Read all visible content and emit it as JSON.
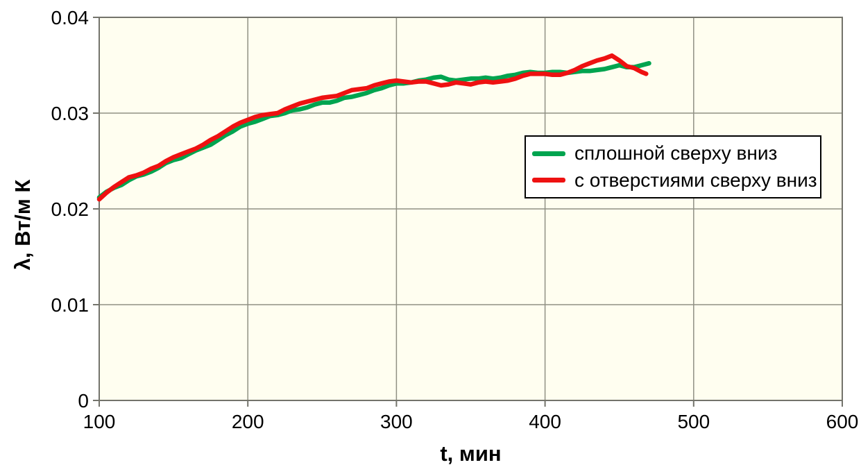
{
  "page": {
    "outer_background": "#ffffff"
  },
  "chart_data": {
    "type": "line",
    "title": "",
    "xlabel": "t, мин",
    "ylabel": "λ, Вт/м К",
    "xlim": [
      100,
      600
    ],
    "ylim": [
      0,
      0.04
    ],
    "x_ticks": [
      100,
      200,
      300,
      400,
      500,
      600
    ],
    "x_tick_labels": [
      "100",
      "200",
      "300",
      "400",
      "500",
      "600"
    ],
    "y_ticks": [
      0,
      0.01,
      0.02,
      0.03,
      0.04
    ],
    "y_tick_labels": [
      "0",
      "0.01",
      "0.02",
      "0.03",
      "0.04"
    ],
    "grid": true,
    "plot_background": "#fffef0",
    "grid_color": "#909084",
    "axis_color": "#73736b",
    "text_color": "#000000",
    "legend_position": "inside upper right",
    "series": [
      {
        "name": "сплошной сверху вниз",
        "color": "#00A44F",
        "points": [
          [
            100,
            0.0212
          ],
          [
            105,
            0.0218
          ],
          [
            110,
            0.0222
          ],
          [
            115,
            0.0225
          ],
          [
            120,
            0.023
          ],
          [
            125,
            0.0234
          ],
          [
            130,
            0.0236
          ],
          [
            135,
            0.0239
          ],
          [
            140,
            0.0243
          ],
          [
            145,
            0.0248
          ],
          [
            150,
            0.0251
          ],
          [
            155,
            0.0253
          ],
          [
            160,
            0.0257
          ],
          [
            165,
            0.0261
          ],
          [
            170,
            0.0264
          ],
          [
            175,
            0.0267
          ],
          [
            180,
            0.0272
          ],
          [
            185,
            0.0277
          ],
          [
            190,
            0.0281
          ],
          [
            195,
            0.0286
          ],
          [
            200,
            0.0289
          ],
          [
            205,
            0.0291
          ],
          [
            210,
            0.0294
          ],
          [
            215,
            0.0297
          ],
          [
            220,
            0.0298
          ],
          [
            225,
            0.03
          ],
          [
            230,
            0.0303
          ],
          [
            235,
            0.0304
          ],
          [
            240,
            0.0306
          ],
          [
            245,
            0.0309
          ],
          [
            250,
            0.0311
          ],
          [
            255,
            0.0311
          ],
          [
            260,
            0.0313
          ],
          [
            265,
            0.0316
          ],
          [
            270,
            0.0317
          ],
          [
            275,
            0.0319
          ],
          [
            280,
            0.0321
          ],
          [
            285,
            0.0324
          ],
          [
            290,
            0.0326
          ],
          [
            295,
            0.0329
          ],
          [
            300,
            0.0331
          ],
          [
            305,
            0.0331
          ],
          [
            310,
            0.0332
          ],
          [
            315,
            0.0334
          ],
          [
            320,
            0.0335
          ],
          [
            325,
            0.0337
          ],
          [
            330,
            0.0338
          ],
          [
            335,
            0.0335
          ],
          [
            340,
            0.0334
          ],
          [
            345,
            0.0335
          ],
          [
            350,
            0.0336
          ],
          [
            355,
            0.0336
          ],
          [
            360,
            0.0337
          ],
          [
            365,
            0.0336
          ],
          [
            370,
            0.0337
          ],
          [
            375,
            0.0339
          ],
          [
            380,
            0.034
          ],
          [
            385,
            0.0342
          ],
          [
            390,
            0.0343
          ],
          [
            395,
            0.0342
          ],
          [
            400,
            0.0342
          ],
          [
            405,
            0.0343
          ],
          [
            410,
            0.0343
          ],
          [
            415,
            0.0342
          ],
          [
            420,
            0.0343
          ],
          [
            425,
            0.0344
          ],
          [
            430,
            0.0344
          ],
          [
            435,
            0.0345
          ],
          [
            440,
            0.0346
          ],
          [
            445,
            0.0348
          ],
          [
            450,
            0.035
          ],
          [
            455,
            0.0348
          ],
          [
            460,
            0.0348
          ],
          [
            465,
            0.035
          ],
          [
            470,
            0.0352
          ]
        ]
      },
      {
        "name": "с отверстиями сверху вниз",
        "color": "#EE1111",
        "points": [
          [
            100,
            0.021
          ],
          [
            105,
            0.0217
          ],
          [
            110,
            0.0223
          ],
          [
            115,
            0.0228
          ],
          [
            120,
            0.0233
          ],
          [
            125,
            0.0235
          ],
          [
            130,
            0.0238
          ],
          [
            135,
            0.0242
          ],
          [
            140,
            0.0245
          ],
          [
            145,
            0.025
          ],
          [
            150,
            0.0254
          ],
          [
            155,
            0.0257
          ],
          [
            160,
            0.026
          ],
          [
            165,
            0.0263
          ],
          [
            170,
            0.0267
          ],
          [
            175,
            0.0272
          ],
          [
            180,
            0.0276
          ],
          [
            185,
            0.0281
          ],
          [
            190,
            0.0286
          ],
          [
            195,
            0.029
          ],
          [
            200,
            0.0293
          ],
          [
            205,
            0.0296
          ],
          [
            210,
            0.0298
          ],
          [
            215,
            0.0299
          ],
          [
            220,
            0.03
          ],
          [
            225,
            0.0304
          ],
          [
            230,
            0.0307
          ],
          [
            235,
            0.031
          ],
          [
            240,
            0.0312
          ],
          [
            245,
            0.0314
          ],
          [
            250,
            0.0316
          ],
          [
            255,
            0.0317
          ],
          [
            260,
            0.0318
          ],
          [
            265,
            0.0321
          ],
          [
            270,
            0.0324
          ],
          [
            275,
            0.0325
          ],
          [
            280,
            0.0326
          ],
          [
            285,
            0.0329
          ],
          [
            290,
            0.0331
          ],
          [
            295,
            0.0333
          ],
          [
            300,
            0.0334
          ],
          [
            305,
            0.0333
          ],
          [
            310,
            0.0332
          ],
          [
            315,
            0.0333
          ],
          [
            320,
            0.0333
          ],
          [
            325,
            0.0331
          ],
          [
            330,
            0.0329
          ],
          [
            335,
            0.033
          ],
          [
            340,
            0.0332
          ],
          [
            345,
            0.0331
          ],
          [
            350,
            0.033
          ],
          [
            355,
            0.0332
          ],
          [
            360,
            0.0333
          ],
          [
            365,
            0.0332
          ],
          [
            370,
            0.0333
          ],
          [
            375,
            0.0334
          ],
          [
            380,
            0.0336
          ],
          [
            385,
            0.0339
          ],
          [
            390,
            0.0341
          ],
          [
            395,
            0.0341
          ],
          [
            400,
            0.0341
          ],
          [
            405,
            0.034
          ],
          [
            410,
            0.034
          ],
          [
            415,
            0.0342
          ],
          [
            420,
            0.0345
          ],
          [
            425,
            0.0349
          ],
          [
            430,
            0.0352
          ],
          [
            435,
            0.0355
          ],
          [
            440,
            0.0357
          ],
          [
            445,
            0.036
          ],
          [
            450,
            0.0355
          ],
          [
            455,
            0.0349
          ],
          [
            460,
            0.0347
          ],
          [
            465,
            0.0343
          ],
          [
            468,
            0.0341
          ]
        ]
      }
    ]
  }
}
